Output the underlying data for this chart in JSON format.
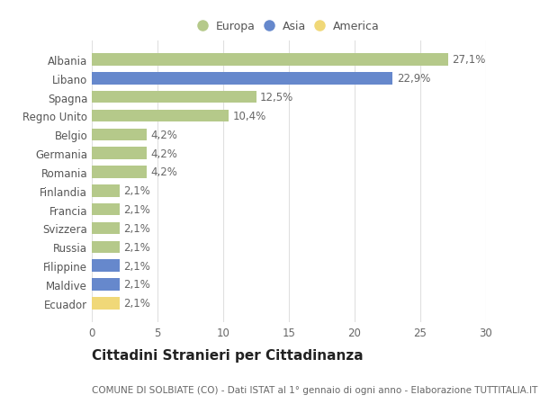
{
  "categories": [
    "Ecuador",
    "Maldive",
    "Filippine",
    "Russia",
    "Svizzera",
    "Francia",
    "Finlandia",
    "Romania",
    "Germania",
    "Belgio",
    "Regno Unito",
    "Spagna",
    "Libano",
    "Albania"
  ],
  "values": [
    2.1,
    2.1,
    2.1,
    2.1,
    2.1,
    2.1,
    2.1,
    4.2,
    4.2,
    4.2,
    10.4,
    12.5,
    22.9,
    27.1
  ],
  "labels": [
    "2,1%",
    "2,1%",
    "2,1%",
    "2,1%",
    "2,1%",
    "2,1%",
    "2,1%",
    "4,2%",
    "4,2%",
    "4,2%",
    "10,4%",
    "12,5%",
    "22,9%",
    "27,1%"
  ],
  "colors": [
    "#f0d878",
    "#6688cc",
    "#6688cc",
    "#b5c98a",
    "#b5c98a",
    "#b5c98a",
    "#b5c98a",
    "#b5c98a",
    "#b5c98a",
    "#b5c98a",
    "#b5c98a",
    "#b5c98a",
    "#6688cc",
    "#b5c98a"
  ],
  "legend_labels": [
    "Europa",
    "Asia",
    "America"
  ],
  "legend_colors": [
    "#b5c98a",
    "#6688cc",
    "#f0d878"
  ],
  "title": "Cittadini Stranieri per Cittadinanza",
  "subtitle": "COMUNE DI SOLBIATE (CO) - Dati ISTAT al 1° gennaio di ogni anno - Elaborazione TUTTITALIA.IT",
  "xlim": [
    0,
    30
  ],
  "xticks": [
    0,
    5,
    10,
    15,
    20,
    25,
    30
  ],
  "background_color": "#ffffff",
  "grid_color": "#e0e0e0",
  "bar_height": 0.65,
  "label_fontsize": 8.5,
  "tick_fontsize": 8.5,
  "title_fontsize": 11,
  "subtitle_fontsize": 7.5
}
